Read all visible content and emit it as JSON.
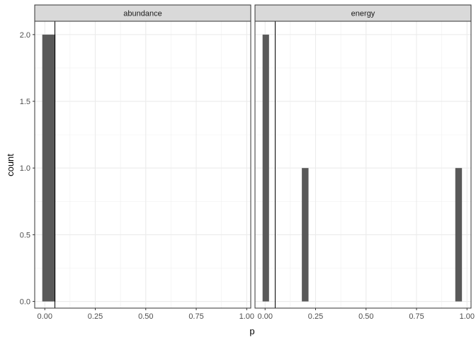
{
  "chart_data": {
    "type": "bar",
    "title": "",
    "xlabel": "p",
    "ylabel": "count",
    "xlim": [
      -0.05,
      1.02
    ],
    "ylim": [
      -0.05,
      2.1
    ],
    "xticks": [
      0.0,
      0.25,
      0.5,
      0.75,
      1.0
    ],
    "xtick_labels": [
      "0.00",
      "0.25",
      "0.50",
      "0.75",
      "1.00"
    ],
    "yticks": [
      0.0,
      0.5,
      1.0,
      1.5,
      2.0
    ],
    "ytick_labels": [
      "0.0",
      "0.5",
      "1.0",
      "1.5",
      "2.0"
    ],
    "bar_color": "#595959",
    "reference_line_x": 0.05,
    "grid": true,
    "panels": [
      {
        "name": "abundance",
        "bars": [
          {
            "x_start": -0.0125,
            "x_end": 0.0525,
            "count": 2
          }
        ]
      },
      {
        "name": "energy",
        "bars": [
          {
            "x_start": -0.0125,
            "x_end": 0.0195,
            "count": 2
          },
          {
            "x_start": 0.182,
            "x_end": 0.215,
            "count": 1
          },
          {
            "x_start": 0.942,
            "x_end": 0.975,
            "count": 1
          }
        ]
      }
    ]
  }
}
